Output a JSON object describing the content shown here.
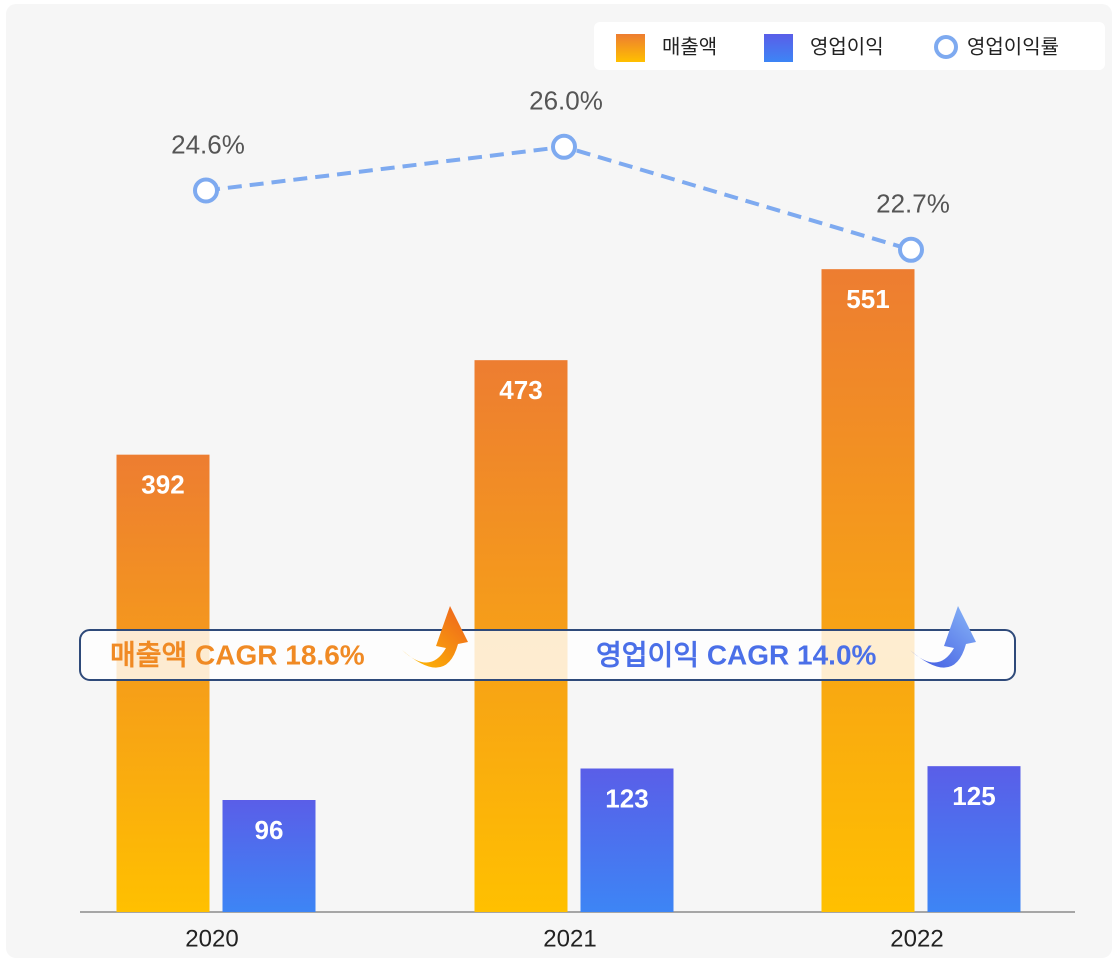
{
  "chart_data": {
    "type": "bar",
    "categories": [
      "2020",
      "2021",
      "2022"
    ],
    "series": [
      {
        "name": "매출액",
        "color": "#ffc000",
        "values": [
          392,
          473,
          551
        ]
      },
      {
        "name": "영업이익",
        "color": "#3d85f5",
        "values": [
          96,
          123,
          125
        ]
      },
      {
        "name": "영업이익률",
        "type": "line",
        "axis": "y2",
        "color": "#7eaaf0",
        "values": [
          24.6,
          26.0,
          22.7
        ],
        "value_labels": [
          "24.6%",
          "26.0%",
          "22.7%"
        ]
      }
    ],
    "ylim": [
      0,
      600
    ],
    "y2lim": [
      20,
      30
    ],
    "legend": "top-right",
    "annotations": [
      "매출액 CAGR 18.6%",
      "영업이익 CAGR 14.0%"
    ]
  }
}
